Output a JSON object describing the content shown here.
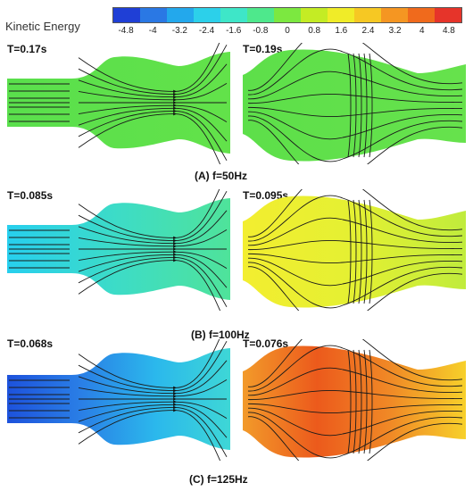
{
  "legend": {
    "title": "Kinetic Energy",
    "ticks": [
      "-4.8",
      "-4",
      "-3.2",
      "-2.4",
      "-1.6",
      "-0.8",
      "0",
      "0.8",
      "1.6",
      "2.4",
      "3.2",
      "4",
      "4.8"
    ],
    "colors": [
      "#1f3fd6",
      "#2a78e4",
      "#23a8ec",
      "#2cd0ea",
      "#3ee6c8",
      "#4ee88c",
      "#7ce840",
      "#c4ec24",
      "#f0ec28",
      "#f6c823",
      "#f59622",
      "#f06a1c",
      "#e6342a"
    ]
  },
  "rows": [
    {
      "caption": "(A) f=50Hz",
      "left": {
        "time": "T=0.17s",
        "shape": "contract",
        "colors": [
          "#5adf4c",
          "#62e24a"
        ]
      },
      "right": {
        "time": "T=0.19s",
        "shape": "expand",
        "colors": [
          "#5ddf4a",
          "#66e24c"
        ]
      }
    },
    {
      "caption": "(B) f=100Hz",
      "left": {
        "time": "T=0.085s",
        "shape": "contract",
        "colors": [
          "#27cfee",
          "#3ddcc6",
          "#4fe39a"
        ]
      },
      "right": {
        "time": "T=0.095s",
        "shape": "expand",
        "colors": [
          "#f3ee30",
          "#e4f032",
          "#c0ec3c"
        ]
      }
    },
    {
      "caption": "(C) f=125Hz",
      "left": {
        "time": "T=0.068s",
        "shape": "contract",
        "colors": [
          "#1d52dc",
          "#2a7fe6",
          "#2bb8ec",
          "#3ed7d6"
        ]
      },
      "right": {
        "time": "T=0.076s",
        "shape": "expand",
        "colors": [
          "#f29a2a",
          "#ec5a1c",
          "#f08a26",
          "#f7d02a"
        ]
      }
    }
  ]
}
